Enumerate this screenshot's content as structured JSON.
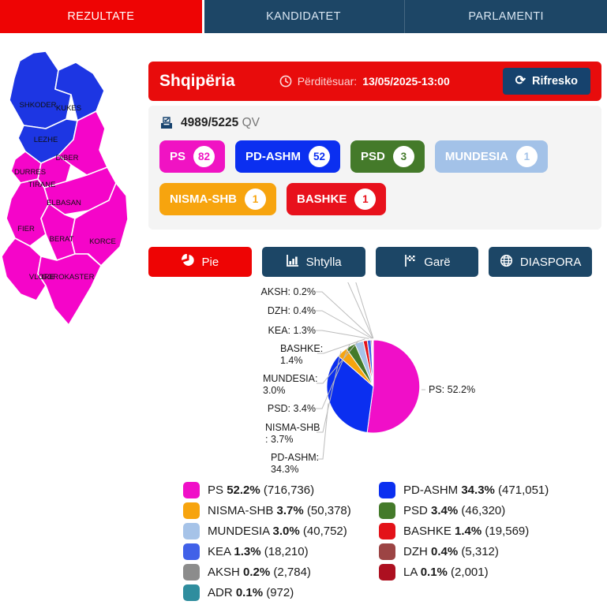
{
  "nav": {
    "tabs": [
      {
        "label": "REZULTATE",
        "active": true
      },
      {
        "label": "KANDIDATET",
        "active": false
      },
      {
        "label": "PARLAMENTI",
        "active": false
      }
    ]
  },
  "header": {
    "title": "Shqipëria",
    "updated_label": "Përditësuar:",
    "updated_value": "13/05/2025-13:00",
    "refresh_label": "Rifresko",
    "clock_icon": "clock-icon",
    "refresh_icon": "refresh-icon"
  },
  "stats": {
    "counted": "4989/5225",
    "unit": "QV",
    "ballot_icon": "ballot-box-icon"
  },
  "badges": {
    "row1": [
      {
        "party": "PS",
        "seats": "82",
        "color": "#f013c3"
      },
      {
        "party": "PD-ASHM",
        "seats": "52",
        "color": "#0b2ff0"
      },
      {
        "party": "PSD",
        "seats": "3",
        "color": "#447a2a"
      },
      {
        "party": "MUNDESIA",
        "seats": "1",
        "color": "#a3c2e8"
      }
    ],
    "row2": [
      {
        "party": "NISMA-SHB",
        "seats": "1",
        "color": "#f7a40e"
      },
      {
        "party": "BASHKE",
        "seats": "1",
        "color": "#e8111c"
      }
    ]
  },
  "view_buttons": [
    {
      "label": "Pie",
      "icon": "pie-icon",
      "active": true
    },
    {
      "label": "Shtylla",
      "icon": "bar-chart-icon",
      "active": false
    },
    {
      "label": "Garë",
      "icon": "flag-icon",
      "active": false
    },
    {
      "label": "DIASPORA",
      "icon": "globe-icon",
      "active": false
    }
  ],
  "chart_data": {
    "type": "pie",
    "title": "",
    "legend_position": "bottom",
    "slices": [
      {
        "name": "PS",
        "pct": 52.2,
        "votes": 716736,
        "votes_display": "716,736",
        "color": "#f00fc8",
        "label_lines": [
          "PS: 52.2%"
        ]
      },
      {
        "name": "PD-ASHM",
        "pct": 34.3,
        "votes": 471051,
        "votes_display": "471,051",
        "color": "#0b2ff0",
        "label_lines": [
          "PD-ASHM:",
          "34.3%"
        ]
      },
      {
        "name": "NISMA-SHB",
        "pct": 3.7,
        "votes": 50378,
        "votes_display": "50,378",
        "color": "#f7a40e",
        "label_lines": [
          "NISMA-SHB",
          ": 3.7%"
        ]
      },
      {
        "name": "PSD",
        "pct": 3.4,
        "votes": 46320,
        "votes_display": "46,320",
        "color": "#447a2a",
        "label_lines": [
          "PSD: 3.4%"
        ]
      },
      {
        "name": "MUNDESIA",
        "pct": 3.0,
        "votes": 40752,
        "votes_display": "40,752",
        "color": "#a6c3e8",
        "label_lines": [
          "MUNDESIA:",
          "3.0%"
        ]
      },
      {
        "name": "BASHKE",
        "pct": 1.4,
        "votes": 19569,
        "votes_display": "19,569",
        "color": "#e31219",
        "label_lines": [
          "BASHKE:",
          "1.4%"
        ]
      },
      {
        "name": "KEA",
        "pct": 1.3,
        "votes": 18210,
        "votes_display": "18,210",
        "color": "#4161e8",
        "label_lines": [
          "KEA: 1.3%"
        ]
      },
      {
        "name": "DZH",
        "pct": 0.4,
        "votes": 5312,
        "votes_display": "5,312",
        "color": "#9c4444",
        "label_lines": [
          "DZH: 0.4%"
        ]
      },
      {
        "name": "AKSH",
        "pct": 0.2,
        "votes": 2784,
        "votes_display": "2,784",
        "color": "#8c8c8c",
        "label_lines": [
          "AKSH: 0.2%"
        ]
      },
      {
        "name": "LA",
        "pct": 0.1,
        "votes": 2001,
        "votes_display": "2,001",
        "color": "#ad1020",
        "label_lines": []
      },
      {
        "name": "ADR",
        "pct": 0.1,
        "votes": 972,
        "votes_display": "972",
        "color": "#2f8d9e",
        "label_lines": []
      }
    ]
  },
  "legend": {
    "left_column": [
      "PS",
      "NISMA-SHB",
      "MUNDESIA",
      "KEA",
      "AKSH",
      "ADR"
    ],
    "right_column": [
      "PD-ASHM",
      "PSD",
      "BASHKE",
      "DZH",
      "LA"
    ]
  },
  "map": {
    "colors": {
      "PS": "#f505c9",
      "PD-ASHM": "#1d36e3"
    },
    "regions": [
      {
        "name": "SHKODER",
        "party": "PD-ASHM"
      },
      {
        "name": "KUKES",
        "party": "PD-ASHM"
      },
      {
        "name": "LEZHE",
        "party": "PD-ASHM"
      },
      {
        "name": "DIBER",
        "party": "PS"
      },
      {
        "name": "DURRES",
        "party": "PS"
      },
      {
        "name": "TIRANE",
        "party": "PS"
      },
      {
        "name": "ELBASAN",
        "party": "PS"
      },
      {
        "name": "FIER",
        "party": "PS"
      },
      {
        "name": "BERAT",
        "party": "PS"
      },
      {
        "name": "KORCE",
        "party": "PS"
      },
      {
        "name": "VLORE",
        "party": "PS"
      },
      {
        "name": "GJIROKASTER",
        "party": "PS"
      }
    ]
  }
}
